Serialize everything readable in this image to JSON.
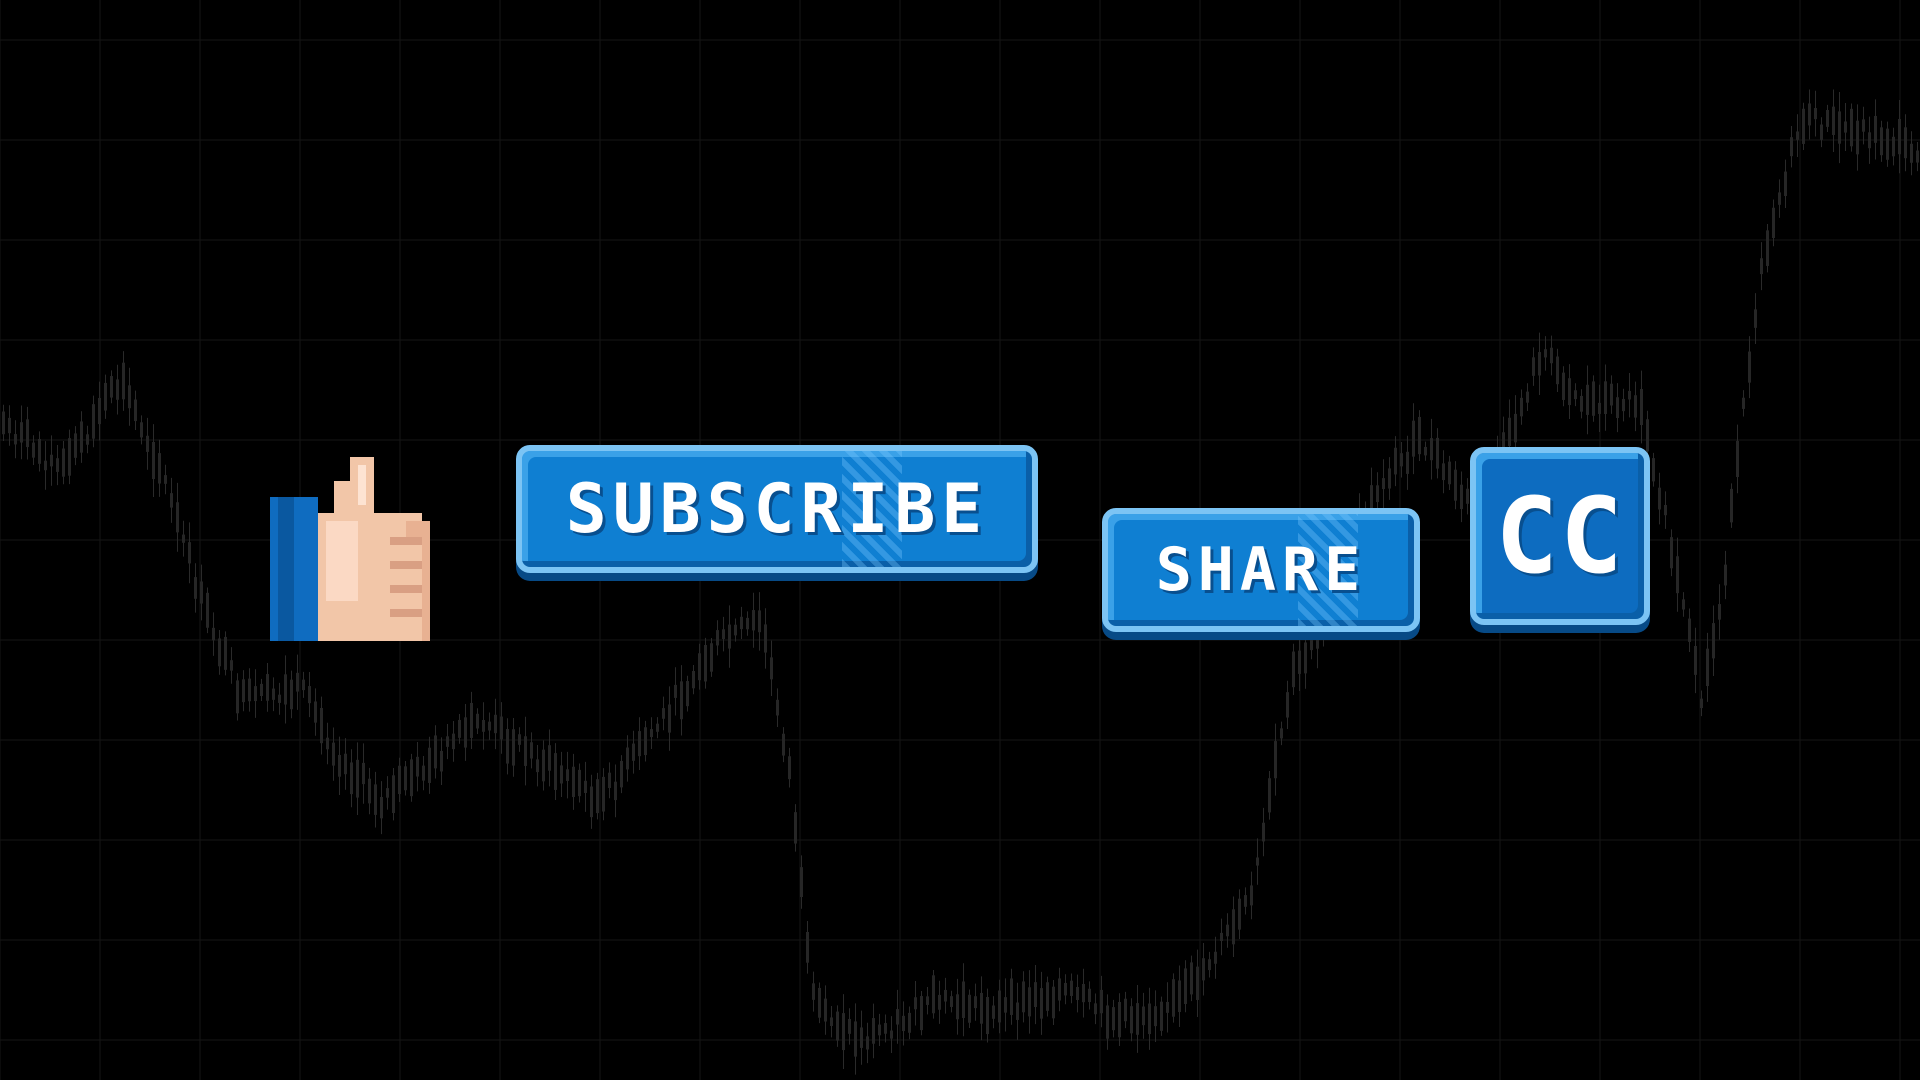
{
  "buttons": {
    "like_icon": "thumbs-up-icon",
    "subscribe_label": "SUBSCRIBE",
    "share_label": "SHARE",
    "cc_label": "CC"
  },
  "colors": {
    "background": "#000000",
    "button_blue": "#0f7fd2",
    "button_border": "#7cc4f4",
    "skin": "#f2c6a8",
    "sleeve": "#0f6cc0"
  }
}
